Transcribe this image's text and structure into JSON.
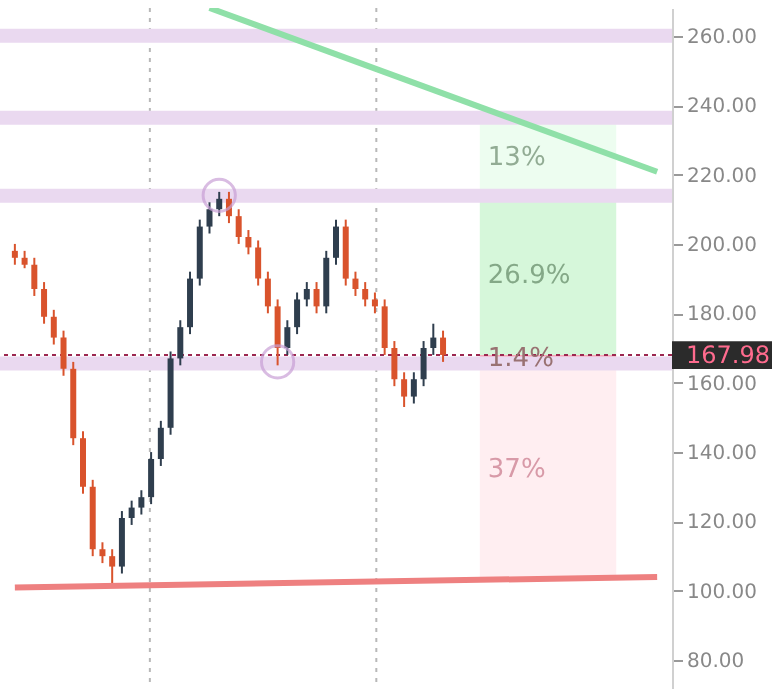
{
  "chart_data": {
    "type": "candlestick",
    "categories": [
      null,
      null,
      null,
      null,
      null,
      null,
      null,
      null,
      null,
      null,
      null,
      null,
      null,
      null,
      null,
      null,
      null,
      null,
      null,
      null,
      null,
      null,
      null,
      null,
      null,
      null,
      null,
      null,
      null,
      null,
      null,
      null,
      null,
      null,
      null,
      null,
      null,
      null,
      null,
      null,
      null,
      null,
      null,
      null,
      null,
      null,
      null,
      null,
      null,
      null,
      null,
      null,
      null,
      null,
      null,
      null,
      null,
      null,
      null,
      null,
      null,
      null,
      null,
      null,
      null,
      null,
      null
    ],
    "ohlc": [
      [
        198,
        200,
        194,
        196
      ],
      [
        196,
        198,
        193,
        194
      ],
      [
        194,
        196,
        185,
        187
      ],
      [
        187,
        189,
        177,
        179
      ],
      [
        179,
        181,
        171,
        173
      ],
      [
        173,
        175,
        162,
        164
      ],
      [
        164,
        166,
        142,
        144
      ],
      [
        144,
        146,
        128,
        130
      ],
      [
        130,
        132,
        110,
        112
      ],
      [
        112,
        114,
        108,
        110
      ],
      [
        110,
        112,
        102,
        107
      ],
      [
        107,
        123,
        105,
        121
      ],
      [
        121,
        126,
        119,
        124
      ],
      [
        124,
        129,
        122,
        127
      ],
      [
        127,
        140,
        125,
        138
      ],
      [
        138,
        149,
        136,
        147
      ],
      [
        147,
        169,
        145,
        167
      ],
      [
        167,
        178,
        165,
        176
      ],
      [
        176,
        192,
        174,
        190
      ],
      [
        190,
        207,
        188,
        205
      ],
      [
        205,
        212,
        203,
        210
      ],
      [
        210,
        215,
        208,
        213
      ],
      [
        213,
        215,
        206,
        208
      ],
      [
        208,
        210,
        200,
        202
      ],
      [
        202,
        204,
        197,
        199
      ],
      [
        199,
        201,
        188,
        190
      ],
      [
        190,
        192,
        180,
        182
      ],
      [
        182,
        184,
        165,
        170
      ],
      [
        170,
        178,
        168,
        176
      ],
      [
        176,
        186,
        174,
        184
      ],
      [
        184,
        189,
        182,
        187
      ],
      [
        187,
        189,
        180,
        182
      ],
      [
        182,
        198,
        180,
        196
      ],
      [
        196,
        207,
        194,
        205
      ],
      [
        205,
        207,
        188,
        190
      ],
      [
        190,
        192,
        185,
        187
      ],
      [
        187,
        189,
        182,
        184
      ],
      [
        184,
        186,
        180,
        182
      ],
      [
        182,
        184,
        168,
        170
      ],
      [
        170,
        172,
        159,
        161
      ],
      [
        161,
        163,
        153,
        156
      ],
      [
        156,
        163,
        154,
        161
      ],
      [
        161,
        172,
        159,
        170
      ],
      [
        170,
        177,
        168,
        173
      ],
      [
        173,
        175,
        166,
        168
      ],
      null,
      null,
      null,
      null,
      null,
      null,
      null,
      null,
      null,
      null,
      null,
      null,
      null,
      null,
      null,
      null,
      null,
      null,
      null,
      null,
      null,
      null
    ],
    "colors": [
      "#d9532c",
      "#d9532c",
      "#d9532c",
      "#d9532c",
      "#d9532c",
      "#d9532c",
      "#d9532c",
      "#d9532c",
      "#d9532c",
      "#d9532c",
      "#d9532c",
      "#2f3e4e",
      "#2f3e4e",
      "#2f3e4e",
      "#2f3e4e",
      "#2f3e4e",
      "#2f3e4e",
      "#2f3e4e",
      "#2f3e4e",
      "#2f3e4e",
      "#2f3e4e",
      "#2f3e4e",
      "#d9532c",
      "#d9532c",
      "#d9532c",
      "#d9532c",
      "#d9532c",
      "#d9532c",
      "#2f3e4e",
      "#2f3e4e",
      "#2f3e4e",
      "#d9532c",
      "#2f3e4e",
      "#2f3e4e",
      "#d9532c",
      "#d9532c",
      "#d9532c",
      "#d9532c",
      "#d9532c",
      "#d9532c",
      "#d9532c",
      "#2f3e4e",
      "#2f3e4e",
      "#2f3e4e",
      "#d9532c",
      null,
      null,
      null,
      null,
      null,
      null,
      null,
      null,
      null,
      null,
      null,
      null,
      null,
      null,
      null,
      null,
      null,
      null,
      null,
      null,
      null,
      null
    ],
    "series": [
      {
        "type": "line",
        "color": "#8fe0a8",
        "values": [
          null,
          null,
          null,
          null,
          null,
          null,
          null,
          null,
          null,
          null,
          null,
          null,
          null,
          null,
          null,
          null,
          null,
          null,
          null,
          null,
          268,
          null,
          null,
          null,
          null,
          null,
          null,
          null,
          null,
          null,
          null,
          null,
          null,
          null,
          null,
          null,
          null,
          null,
          null,
          null,
          null,
          null,
          null,
          null,
          null,
          null,
          null,
          null,
          null,
          null,
          null,
          null,
          null,
          null,
          null,
          null,
          null,
          null,
          null,
          null,
          null,
          null,
          null,
          null,
          null,
          null,
          220.8
        ]
      },
      {
        "type": "line",
        "color": "#ee8080",
        "values": [
          101,
          null,
          null,
          null,
          null,
          null,
          null,
          null,
          null,
          null,
          null,
          null,
          null,
          null,
          null,
          null,
          null,
          null,
          null,
          null,
          null,
          null,
          null,
          null,
          null,
          null,
          null,
          null,
          null,
          null,
          null,
          null,
          null,
          null,
          null,
          null,
          null,
          null,
          null,
          null,
          null,
          null,
          null,
          null,
          null,
          null,
          null,
          null,
          null,
          null,
          null,
          null,
          null,
          null,
          null,
          null,
          null,
          null,
          null,
          null,
          null,
          null,
          null,
          null,
          null,
          null,
          104
        ]
      },
      {
        "type": "scatter",
        "marker": "circle",
        "color": "#c9a0d6",
        "values": [
          null,
          null,
          null,
          null,
          null,
          null,
          null,
          null,
          null,
          null,
          null,
          null,
          null,
          null,
          null,
          null,
          null,
          null,
          null,
          null,
          null,
          214,
          null,
          null,
          null,
          null,
          null,
          166,
          null,
          null,
          null,
          null,
          null,
          null,
          null,
          null,
          null,
          null,
          null,
          null,
          null,
          null,
          null,
          null,
          null,
          null,
          null,
          null,
          null,
          null,
          null,
          null,
          null,
          null,
          null,
          null,
          null,
          null,
          null,
          null,
          null,
          null,
          null,
          null,
          null,
          null,
          null
        ]
      }
    ],
    "ref_lines": [
      {
        "axis": "y",
        "value": 260,
        "color": "#ead9f0"
      },
      {
        "axis": "y",
        "value": 236.4,
        "color": "#ead9f0"
      },
      {
        "axis": "y",
        "value": 213.9,
        "color": "#ead9f0"
      },
      {
        "axis": "y",
        "value": 165.5,
        "color": "#ead9f0"
      },
      {
        "axis": "y",
        "value": 167.98,
        "label": "167.98",
        "color": "#9c2750",
        "line_style": "dotted"
      }
    ],
    "bands": [
      {
        "axis": "y",
        "from": 213.8,
        "to": 236.2,
        "label": "13%",
        "color": "#edfdf0"
      },
      {
        "axis": "y",
        "from": 168,
        "to": 213.8,
        "label": "26.9%",
        "color": "#d6f7da"
      },
      {
        "axis": "y",
        "from": 166,
        "to": 168,
        "label": "1.4%",
        "color": "#f7a8b8"
      },
      {
        "axis": "y",
        "from": 104,
        "to": 166,
        "label": "37%",
        "color": "#ffeef1"
      }
    ],
    "ylim": [
      72,
      268
    ],
    "yticks": [
      {
        "value": 80,
        "label": "80.00"
      },
      {
        "value": 100,
        "label": "100.00"
      },
      {
        "value": 120,
        "label": "120.00"
      },
      {
        "value": 140,
        "label": "140.00"
      },
      {
        "value": 160,
        "label": "160.00"
      },
      {
        "value": 180,
        "label": "180.00"
      },
      {
        "value": 200,
        "label": "200.00"
      },
      {
        "value": 220,
        "label": "220.00"
      },
      {
        "value": 240,
        "label": "240.00"
      },
      {
        "value": 260,
        "label": "260.00"
      }
    ],
    "tick_labels": "y"
  }
}
